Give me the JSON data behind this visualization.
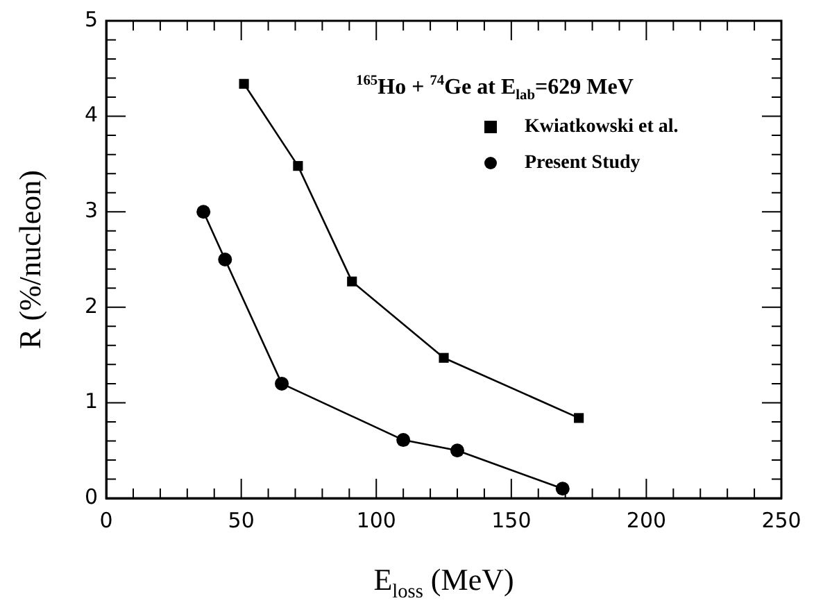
{
  "chart_data": {
    "type": "line",
    "xlabel": "E$_{loss}$ (MeV)",
    "ylabel": "R (%/nucleon)",
    "annotations": [
      "$^{165}$Ho + $^{74}$Ge at E$_{lab}$=629 MeV"
    ],
    "series": [
      {
        "name": "Kwiatkowski et al.",
        "color": "#000000",
        "marker": "square",
        "x": [
          51,
          71,
          91,
          125,
          175
        ],
        "values": [
          4.34,
          3.48,
          2.27,
          1.47,
          0.84
        ]
      },
      {
        "name": "Present Study",
        "color": "#000000",
        "marker": "circle",
        "x": [
          36,
          44,
          65,
          110,
          130,
          169
        ],
        "values": [
          3.0,
          2.5,
          1.2,
          0.61,
          0.5,
          0.1
        ]
      }
    ],
    "xlim": [
      0,
      250
    ],
    "xticks": [
      0,
      {
        "value": 10,
        "label": null
      },
      {
        "value": 20,
        "label": null
      },
      {
        "value": 30,
        "label": null
      },
      {
        "value": 40,
        "label": null
      },
      50,
      {
        "value": 60,
        "label": null
      },
      {
        "value": 70,
        "label": null
      },
      {
        "value": 80,
        "label": null
      },
      {
        "value": 90,
        "label": null
      },
      100,
      {
        "value": 110,
        "label": null
      },
      {
        "value": 120,
        "label": null
      },
      {
        "value": 130,
        "label": null
      },
      {
        "value": 140,
        "label": null
      },
      150,
      {
        "value": 160,
        "label": null
      },
      {
        "value": 170,
        "label": null
      },
      {
        "value": 180,
        "label": null
      },
      {
        "value": 190,
        "label": null
      },
      200,
      {
        "value": 210,
        "label": null
      },
      {
        "value": 220,
        "label": null
      },
      {
        "value": 230,
        "label": null
      },
      {
        "value": 240,
        "label": null
      },
      250
    ],
    "ylim": [
      0,
      5
    ],
    "yticks": [
      0,
      {
        "value": 0.2,
        "label": null
      },
      {
        "value": 0.4,
        "label": null
      },
      {
        "value": 0.6,
        "label": null
      },
      {
        "value": 0.8,
        "label": null
      },
      1,
      {
        "value": 1.2,
        "label": null
      },
      {
        "value": 1.4,
        "label": null
      },
      {
        "value": 1.6,
        "label": null
      },
      {
        "value": 1.8,
        "label": null
      },
      2,
      {
        "value": 2.2,
        "label": null
      },
      {
        "value": 2.4,
        "label": null
      },
      {
        "value": 2.6,
        "label": null
      },
      {
        "value": 2.8,
        "label": null
      },
      3,
      {
        "value": 3.2,
        "label": null
      },
      {
        "value": 3.4,
        "label": null
      },
      {
        "value": 3.6,
        "label": null
      },
      {
        "value": 3.8,
        "label": null
      },
      4,
      {
        "value": 4.2,
        "label": null
      },
      {
        "value": 4.4,
        "label": null
      },
      {
        "value": 4.6,
        "label": null
      },
      {
        "value": 4.8,
        "label": null
      },
      5
    ],
    "grid": false,
    "legend": "top right",
    "line_style": "solid"
  }
}
